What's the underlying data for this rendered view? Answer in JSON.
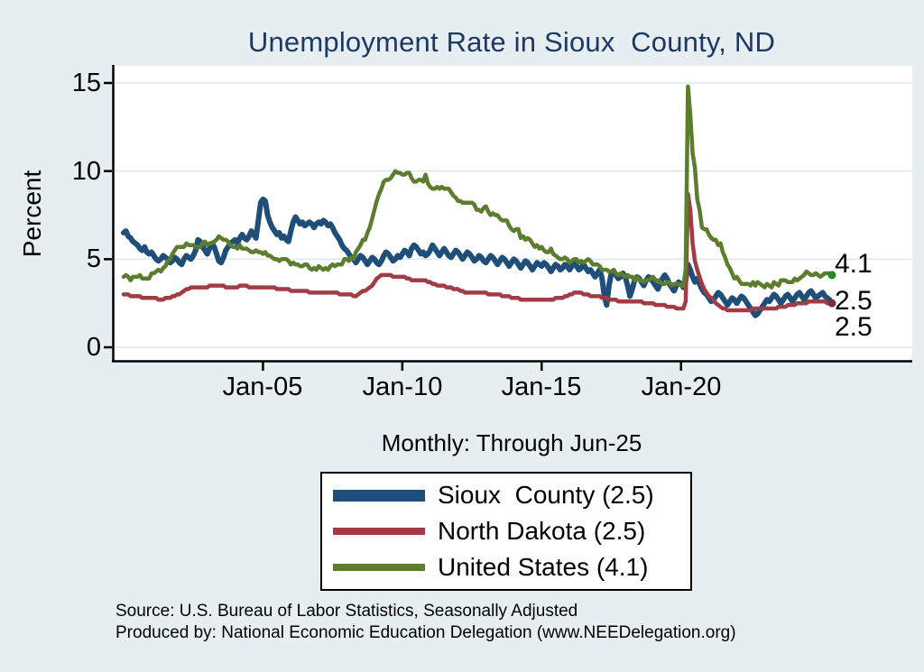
{
  "header": {
    "title": "Unemployment Rate in Sioux  County, ND"
  },
  "subtitle": "Monthly: Through Jun-25",
  "axes": {
    "y_label": "Percent",
    "y_tick_labels": [
      "0",
      "5",
      "10",
      "15"
    ],
    "x_tick_labels": [
      "Jan-05",
      "Jan-10",
      "Jan-15",
      "Jan-20"
    ]
  },
  "annotations": {
    "end_labels": [
      "4.1",
      "2.5",
      "2.5"
    ]
  },
  "legend": {
    "items": [
      {
        "label": "Sioux  County (2.5)"
      },
      {
        "label": "North Dakota (2.5)"
      },
      {
        "label": "United States (4.1)"
      }
    ]
  },
  "footer": {
    "line1": "Source: U.S. Bureau of Labor Statistics, Seasonally Adjusted",
    "line2": "Produced by: National Economic Education Delegation (www.NEEDelegation.org)"
  },
  "chart_data": {
    "type": "line",
    "title": "Unemployment Rate in Sioux  County, ND",
    "frequency": "monthly",
    "x_range": [
      "Jan-2000",
      "Jun-2025"
    ],
    "ylim": [
      0,
      15
    ],
    "y_ticks": [
      0,
      5,
      10,
      15
    ],
    "x_tick_labels": [
      "Jan-05",
      "Jan-10",
      "Jan-15",
      "Jan-20"
    ],
    "x_tick_month_index": [
      60,
      120,
      180,
      240
    ],
    "background": "#e6eef2",
    "plot_background": "#ffffff",
    "gridline_color": "#dce8f0",
    "series": [
      {
        "name": "Sioux County",
        "last_value": 2.5,
        "color": "#1f4e79",
        "width": 6,
        "end_dot": null,
        "values": [
          6.5,
          6.6,
          6.3,
          6.2,
          6.0,
          5.9,
          5.8,
          5.6,
          5.5,
          5.7,
          5.4,
          5.3,
          5.4,
          5.2,
          5.0,
          4.9,
          5.0,
          5.2,
          5.1,
          5.0,
          4.8,
          4.9,
          5.1,
          5.0,
          4.8,
          4.7,
          5.0,
          5.2,
          5.1,
          5.0,
          5.2,
          5.5,
          6.1,
          6.0,
          5.7,
          5.5,
          5.3,
          5.6,
          5.9,
          5.7,
          5.3,
          4.9,
          4.8,
          5.1,
          5.5,
          5.7,
          5.9,
          6.0,
          6.1,
          5.9,
          6.2,
          6.4,
          6.2,
          6.1,
          6.3,
          6.6,
          6.4,
          6.2,
          7.2,
          8.2,
          8.4,
          8.3,
          7.5,
          7.1,
          6.8,
          6.6,
          6.4,
          6.5,
          6.2,
          6.3,
          6.1,
          6.0,
          6.6,
          7.1,
          7.4,
          7.2,
          7.0,
          7.1,
          6.9,
          7.0,
          7.1,
          7.0,
          6.8,
          7.0,
          7.1,
          7.0,
          7.2,
          7.1,
          6.9,
          7.0,
          6.8,
          6.5,
          6.3,
          6.1,
          5.8,
          5.6,
          5.5,
          5.3,
          5.1,
          5.0,
          4.8,
          5.0,
          5.2,
          5.1,
          4.9,
          4.7,
          4.9,
          5.1,
          5.0,
          4.8,
          4.7,
          4.9,
          5.2,
          5.4,
          5.3,
          5.1,
          4.9,
          5.0,
          5.2,
          5.1,
          5.3,
          5.5,
          5.4,
          5.2,
          5.6,
          5.8,
          5.7,
          5.5,
          5.3,
          5.4,
          5.2,
          5.3,
          5.5,
          5.8,
          5.6,
          5.4,
          5.2,
          5.4,
          5.6,
          5.4,
          5.2,
          5.1,
          5.3,
          5.5,
          5.4,
          5.2,
          5.0,
          5.2,
          5.4,
          5.3,
          5.1,
          4.9,
          5.0,
          5.2,
          5.1,
          4.9,
          4.8,
          5.0,
          5.2,
          5.1,
          4.9,
          4.7,
          4.9,
          5.1,
          5.0,
          4.8,
          4.6,
          4.8,
          5.0,
          4.9,
          4.7,
          4.5,
          4.7,
          4.9,
          4.8,
          4.6,
          4.4,
          4.6,
          4.8,
          4.7,
          4.6,
          4.8,
          4.7,
          4.5,
          4.3,
          4.5,
          4.7,
          4.6,
          4.4,
          4.5,
          4.7,
          4.6,
          4.4,
          4.6,
          4.8,
          4.6,
          4.4,
          4.5,
          4.7,
          4.5,
          4.3,
          4.4,
          4.2,
          4.0,
          4.2,
          4.4,
          3.9,
          2.9,
          2.4,
          3.5,
          4.2,
          4.3,
          4.1,
          3.9,
          4.0,
          4.2,
          4.0,
          3.5,
          2.9,
          3.3,
          3.8,
          4.0,
          3.9,
          3.7,
          3.5,
          3.8,
          4.0,
          3.9,
          3.7,
          3.5,
          3.3,
          3.6,
          3.9,
          4.1,
          3.9,
          3.6,
          3.4,
          3.2,
          3.5,
          3.7,
          3.6,
          3.4,
          3.8,
          4.7,
          4.4,
          4.0,
          3.7,
          3.9,
          3.6,
          3.3,
          3.1,
          3.0,
          2.8,
          2.6,
          2.7,
          2.9,
          3.1,
          3.0,
          2.8,
          2.6,
          2.4,
          2.6,
          2.8,
          2.7,
          2.5,
          2.7,
          2.9,
          2.8,
          2.6,
          2.4,
          2.2,
          2.0,
          1.8,
          1.9,
          2.1,
          2.3,
          2.5,
          2.7,
          2.6,
          2.8,
          3.0,
          2.9,
          2.7,
          2.5,
          2.7,
          2.9,
          3.0,
          2.8,
          2.6,
          2.8,
          3.0,
          3.1,
          2.9,
          2.7,
          2.9,
          3.1,
          3.2,
          3.0,
          2.8,
          2.9,
          3.0,
          3.1,
          2.9,
          2.8,
          2.7,
          2.5
        ]
      },
      {
        "name": "North Dakota",
        "last_value": 2.5,
        "color": "#a23c44",
        "width": 4.5,
        "end_dot": "#7e2d34",
        "values": [
          3.0,
          3.0,
          3.0,
          2.9,
          2.9,
          2.9,
          2.9,
          2.9,
          2.8,
          2.8,
          2.8,
          2.8,
          2.8,
          2.8,
          2.8,
          2.7,
          2.7,
          2.7,
          2.8,
          2.8,
          2.8,
          2.9,
          2.9,
          3.0,
          3.0,
          3.1,
          3.2,
          3.3,
          3.3,
          3.4,
          3.4,
          3.4,
          3.4,
          3.4,
          3.4,
          3.4,
          3.4,
          3.5,
          3.5,
          3.5,
          3.5,
          3.5,
          3.5,
          3.5,
          3.4,
          3.4,
          3.4,
          3.4,
          3.4,
          3.4,
          3.5,
          3.5,
          3.5,
          3.5,
          3.4,
          3.4,
          3.4,
          3.4,
          3.4,
          3.4,
          3.4,
          3.4,
          3.4,
          3.4,
          3.4,
          3.4,
          3.3,
          3.3,
          3.3,
          3.3,
          3.3,
          3.3,
          3.2,
          3.2,
          3.2,
          3.2,
          3.2,
          3.2,
          3.2,
          3.2,
          3.1,
          3.1,
          3.1,
          3.1,
          3.1,
          3.1,
          3.1,
          3.1,
          3.1,
          3.1,
          3.1,
          3.1,
          3.1,
          3.0,
          3.0,
          3.0,
          3.0,
          3.0,
          3.0,
          2.9,
          2.9,
          3.0,
          3.1,
          3.2,
          3.2,
          3.3,
          3.4,
          3.5,
          3.7,
          3.9,
          4.0,
          4.1,
          4.1,
          4.1,
          4.1,
          4.1,
          4.0,
          4.0,
          4.0,
          4.0,
          4.0,
          4.0,
          3.9,
          3.9,
          3.8,
          3.8,
          3.8,
          3.8,
          3.8,
          3.8,
          3.8,
          3.7,
          3.7,
          3.6,
          3.6,
          3.5,
          3.5,
          3.5,
          3.5,
          3.4,
          3.4,
          3.4,
          3.3,
          3.3,
          3.3,
          3.2,
          3.2,
          3.1,
          3.1,
          3.1,
          3.1,
          3.1,
          3.1,
          3.1,
          3.1,
          3.1,
          3.1,
          3.0,
          3.0,
          3.0,
          3.0,
          3.0,
          3.0,
          2.9,
          2.9,
          2.9,
          2.9,
          2.8,
          2.8,
          2.8,
          2.8,
          2.7,
          2.7,
          2.7,
          2.7,
          2.7,
          2.7,
          2.7,
          2.7,
          2.7,
          2.7,
          2.7,
          2.7,
          2.7,
          2.7,
          2.7,
          2.8,
          2.8,
          2.8,
          2.8,
          2.9,
          2.9,
          3.0,
          3.0,
          3.1,
          3.1,
          3.1,
          3.1,
          3.0,
          3.0,
          3.0,
          2.9,
          2.9,
          2.9,
          2.9,
          2.9,
          2.8,
          2.8,
          2.8,
          2.7,
          2.7,
          2.7,
          2.7,
          2.6,
          2.6,
          2.6,
          2.6,
          2.6,
          2.6,
          2.6,
          2.6,
          2.6,
          2.6,
          2.6,
          2.5,
          2.5,
          2.5,
          2.5,
          2.5,
          2.4,
          2.4,
          2.4,
          2.4,
          2.4,
          2.3,
          2.3,
          2.3,
          2.3,
          2.2,
          2.2,
          2.2,
          2.2,
          2.6,
          8.7,
          7.8,
          5.9,
          4.9,
          4.4,
          4.0,
          3.6,
          3.3,
          3.1,
          2.9,
          2.8,
          2.7,
          2.5,
          2.4,
          2.3,
          2.2,
          2.2,
          2.1,
          2.1,
          2.1,
          2.1,
          2.1,
          2.1,
          2.1,
          2.1,
          2.1,
          2.1,
          2.1,
          2.2,
          2.2,
          2.2,
          2.2,
          2.2,
          2.2,
          2.2,
          2.2,
          2.2,
          2.2,
          2.2,
          2.3,
          2.3,
          2.3,
          2.3,
          2.4,
          2.4,
          2.4,
          2.4,
          2.5,
          2.5,
          2.5,
          2.5,
          2.5,
          2.6,
          2.6,
          2.6,
          2.6,
          2.6,
          2.6,
          2.6,
          2.6,
          2.5,
          2.5,
          2.5
        ]
      },
      {
        "name": "United States",
        "last_value": 4.1,
        "color": "#5d7d2e",
        "width": 4.5,
        "end_dot": "#1f8c28",
        "values": [
          4.0,
          4.1,
          4.0,
          3.8,
          4.0,
          4.0,
          4.0,
          4.1,
          3.9,
          3.9,
          3.9,
          3.9,
          4.2,
          4.2,
          4.3,
          4.4,
          4.3,
          4.5,
          4.6,
          4.9,
          5.0,
          5.3,
          5.5,
          5.7,
          5.7,
          5.7,
          5.7,
          5.9,
          5.8,
          5.8,
          5.8,
          5.7,
          5.7,
          5.7,
          5.9,
          6.0,
          5.8,
          5.9,
          5.9,
          6.0,
          6.1,
          6.3,
          6.2,
          6.1,
          6.1,
          6.0,
          5.8,
          5.7,
          5.7,
          5.6,
          5.8,
          5.6,
          5.6,
          5.6,
          5.5,
          5.4,
          5.4,
          5.5,
          5.4,
          5.4,
          5.3,
          5.4,
          5.2,
          5.2,
          5.1,
          5.0,
          5.0,
          4.9,
          5.0,
          5.0,
          5.0,
          4.9,
          4.7,
          4.8,
          4.7,
          4.7,
          4.6,
          4.6,
          4.7,
          4.7,
          4.5,
          4.4,
          4.5,
          4.4,
          4.6,
          4.5,
          4.4,
          4.5,
          4.4,
          4.6,
          4.7,
          4.6,
          4.7,
          4.7,
          4.7,
          5.0,
          5.0,
          4.9,
          5.1,
          5.0,
          5.4,
          5.6,
          5.8,
          6.1,
          6.1,
          6.5,
          6.8,
          7.3,
          7.8,
          8.3,
          8.7,
          9.0,
          9.4,
          9.5,
          9.5,
          9.6,
          9.8,
          10.0,
          9.9,
          9.9,
          9.8,
          9.8,
          9.9,
          9.9,
          9.6,
          9.4,
          9.4,
          9.5,
          9.5,
          9.4,
          9.8,
          9.3,
          9.1,
          9.0,
          9.0,
          9.1,
          9.0,
          9.1,
          9.0,
          9.0,
          9.0,
          8.8,
          8.6,
          8.5,
          8.3,
          8.3,
          8.2,
          8.2,
          8.2,
          8.2,
          8.2,
          8.1,
          7.8,
          7.8,
          7.7,
          7.9,
          8.0,
          7.7,
          7.5,
          7.6,
          7.5,
          7.5,
          7.3,
          7.2,
          7.2,
          7.2,
          6.9,
          6.7,
          6.6,
          6.7,
          6.7,
          6.2,
          6.3,
          6.1,
          6.2,
          6.1,
          5.9,
          5.7,
          5.8,
          5.6,
          5.7,
          5.5,
          5.4,
          5.4,
          5.6,
          5.3,
          5.2,
          5.1,
          5.0,
          5.0,
          5.1,
          5.0,
          4.8,
          4.9,
          5.0,
          5.0,
          4.8,
          4.9,
          4.8,
          4.9,
          5.0,
          4.9,
          4.7,
          4.7,
          4.7,
          4.6,
          4.4,
          4.4,
          4.4,
          4.3,
          4.3,
          4.4,
          4.2,
          4.1,
          4.2,
          4.1,
          4.0,
          4.1,
          4.0,
          4.0,
          3.8,
          4.0,
          3.8,
          3.8,
          3.7,
          3.8,
          3.8,
          3.9,
          4.0,
          3.8,
          3.8,
          3.7,
          3.6,
          3.6,
          3.7,
          3.7,
          3.5,
          3.6,
          3.6,
          3.6,
          3.5,
          3.5,
          4.4,
          14.8,
          13.2,
          11.0,
          10.2,
          8.4,
          7.8,
          6.8,
          6.7,
          6.7,
          6.4,
          6.2,
          6.1,
          6.1,
          5.8,
          5.9,
          5.4,
          5.1,
          4.7,
          4.5,
          4.2,
          3.9,
          4.0,
          3.8,
          3.6,
          3.6,
          3.6,
          3.6,
          3.5,
          3.7,
          3.5,
          3.7,
          3.6,
          3.5,
          3.4,
          3.6,
          3.5,
          3.4,
          3.7,
          3.6,
          3.5,
          3.8,
          3.8,
          3.8,
          3.7,
          3.7,
          3.7,
          3.9,
          3.8,
          3.9,
          4.0,
          4.1,
          4.3,
          4.2,
          4.1,
          4.1,
          4.2,
          4.1,
          4.0,
          4.1,
          4.2,
          4.2,
          4.2,
          4.1
        ]
      }
    ]
  }
}
